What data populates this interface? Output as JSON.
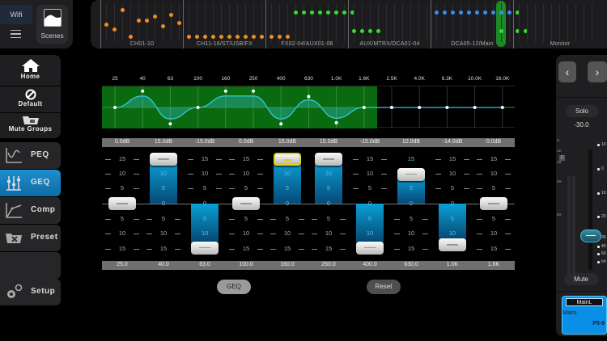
{
  "top_left": {
    "wifi_label": "Wifi",
    "menu_icon": "hamburger-menu-icon",
    "scenes_label": "Scenes"
  },
  "overview": {
    "groups": [
      {
        "label": "CH01-10",
        "color": "#f28c1e",
        "dot_y": [
          28,
          34,
          10,
          43,
          23,
          23,
          18,
          30,
          16,
          26
        ]
      },
      {
        "label": "CH11-16/ST/USB/FX",
        "color": "#f28c1e",
        "dot_y": [
          43,
          43,
          43,
          43,
          43,
          43,
          43,
          43,
          43,
          43
        ]
      },
      {
        "label": "FX02-04/AUX01-06",
        "color": "#f28c1e",
        "dot_y": [
          43,
          43,
          43,
          13,
          13,
          13,
          13,
          13,
          13,
          13,
          13
        ]
      },
      {
        "label": "AUX/MTRX/DCA01-04",
        "color": "#2fe02f",
        "dot_y": [
          36,
          36,
          36,
          36
        ]
      },
      {
        "label": "DCA05-12/Main",
        "color": "#3a8ef0",
        "dot_y": [
          13,
          13,
          13,
          13,
          13,
          13,
          13,
          13,
          13,
          13,
          13
        ]
      },
      {
        "label": "Monitor",
        "color": "#2fe02f",
        "dot_y": []
      }
    ],
    "fx_green_dots": 8,
    "main_green_dots": 3
  },
  "sidebar": {
    "top_items": [
      {
        "label": "Home",
        "icon": "home-icon"
      },
      {
        "label": "Default",
        "icon": "prohibited-icon"
      },
      {
        "label": "Mute Groups",
        "icon": "folder-icon"
      }
    ],
    "tabs": [
      {
        "label": "PEQ",
        "icon": "peq-curve-icon",
        "active": false
      },
      {
        "label": "GEQ",
        "icon": "geq-sliders-icon",
        "active": true
      },
      {
        "label": "Comp",
        "icon": "compressor-curve-icon",
        "active": false
      },
      {
        "label": "Preset",
        "icon": "preset-folder-icon",
        "active": false
      },
      {
        "label": "",
        "icon": "",
        "active": false
      },
      {
        "label": "Setup",
        "icon": "gears-icon",
        "active": false
      }
    ]
  },
  "geq": {
    "graph_frequencies": [
      "25",
      "40",
      "63",
      "100",
      "160",
      "250",
      "400",
      "630",
      "1.0K",
      "1.6K",
      "2.5K",
      "4.0K",
      "6.3K",
      "10.0K",
      "16.0K"
    ],
    "graph_point_db": [
      0,
      15,
      -15,
      0,
      15,
      15,
      -15,
      10,
      -14,
      0,
      0,
      0,
      0,
      0,
      0
    ],
    "colors": {
      "active_band_bg": "#0a6a10",
      "curve": "#35c8d8",
      "fader_fill": "#0aa0d6",
      "selected_knob": "#e2d11a"
    },
    "bands": [
      {
        "gain": "0.0dB",
        "freq": "25.0",
        "value": 0,
        "selected": false
      },
      {
        "gain": "15.0dB",
        "freq": "40.0",
        "value": 15,
        "selected": false
      },
      {
        "gain": "-15.0dB",
        "freq": "63.0",
        "value": -15,
        "selected": false
      },
      {
        "gain": "0.0dB",
        "freq": "100.0",
        "value": 0,
        "selected": false
      },
      {
        "gain": "15.0dB",
        "freq": "160.0",
        "value": 15,
        "selected": true
      },
      {
        "gain": "15.0dB",
        "freq": "250.0",
        "value": 15,
        "selected": false
      },
      {
        "gain": "-15.0dB",
        "freq": "400.0",
        "value": -15,
        "selected": false
      },
      {
        "gain": "10.0dB",
        "freq": "630.0",
        "value": 10,
        "selected": false
      },
      {
        "gain": "-14.0dB",
        "freq": "1.0K",
        "value": -14,
        "selected": false
      },
      {
        "gain": "0.0dB",
        "freq": "1.6K",
        "value": 0,
        "selected": false
      }
    ],
    "scale_labels": [
      "15",
      "10",
      "5",
      "0",
      "5",
      "10",
      "15"
    ],
    "geq_button": "GEQ",
    "reset_button": "Reset"
  },
  "right_panel": {
    "prev_label": "‹",
    "next_label": "›",
    "solo_label": "Solo",
    "fader_value": "-30.0",
    "clip_label": "C",
    "meter_labels": [
      "0-",
      "12-",
      "18-",
      "40-",
      "60-"
    ],
    "fader_scale": [
      "10",
      "0",
      "10",
      "20",
      "30",
      "40",
      "60",
      "Inf"
    ],
    "mute_label": "Mute",
    "channel_title": "MainL",
    "channel_name": "MainL",
    "channel_id": "P5-9"
  }
}
